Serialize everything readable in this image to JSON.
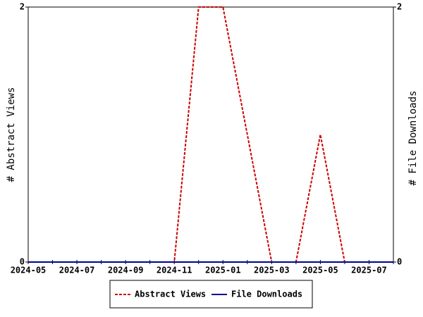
{
  "chart_data": {
    "type": "line",
    "categories": [
      "2024-05",
      null,
      "2024-07",
      null,
      "2024-09",
      null,
      "2024-11",
      null,
      "2025-01",
      null,
      "2025-03",
      null,
      "2025-05",
      null,
      "2025-07",
      null
    ],
    "series": [
      {
        "name": "Abstract Views",
        "color": "#cc0000",
        "dash": true,
        "values": [
          0,
          0,
          0,
          0,
          0,
          0,
          0,
          2,
          2,
          1,
          0,
          0,
          1,
          0,
          0,
          0
        ]
      },
      {
        "name": "File Downloads",
        "color": "#000099",
        "dash": false,
        "axis": "y2",
        "values": [
          0,
          0,
          0,
          0,
          0,
          0,
          0,
          0,
          0,
          0,
          0,
          0,
          0,
          0,
          0,
          0
        ]
      }
    ],
    "ylabel": "# Abstract Views",
    "y2label": "# File Downloads",
    "ylim": [
      0,
      2
    ],
    "yticks": [
      0,
      2
    ],
    "y2lim": [
      0,
      2
    ],
    "y2ticks": [
      0,
      2
    ],
    "legend": "bottom"
  }
}
